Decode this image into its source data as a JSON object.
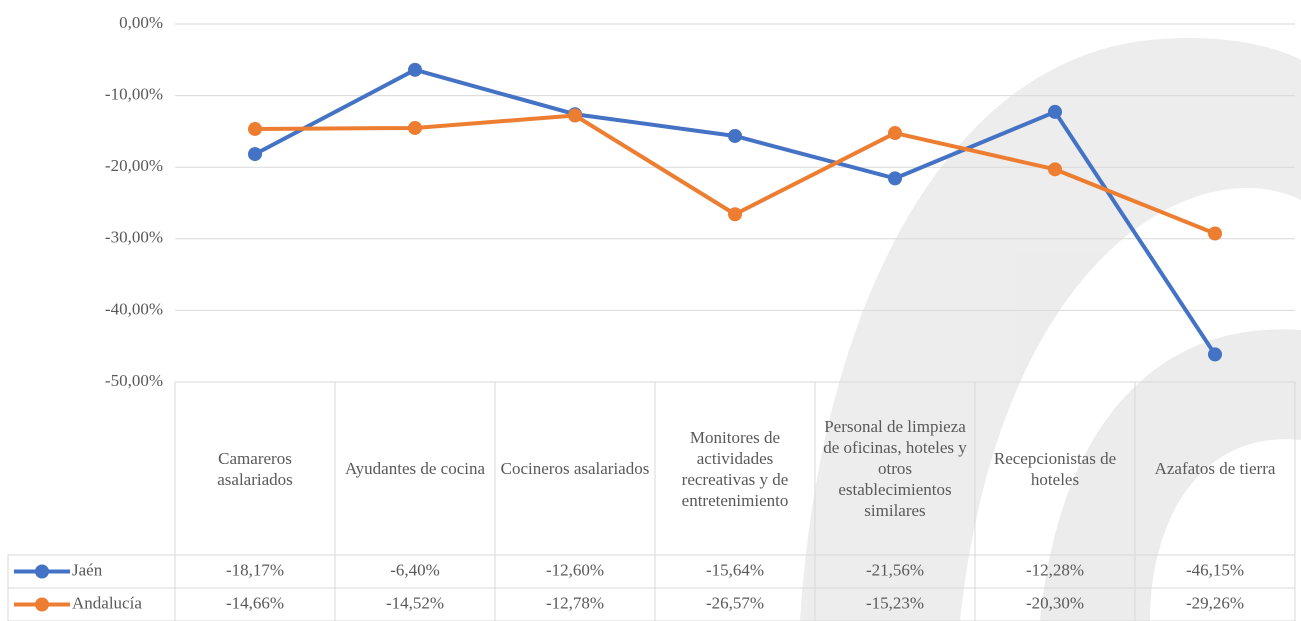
{
  "chart_data": {
    "type": "line",
    "categories": [
      "Camareros asalariados",
      "Ayudantes de cocina",
      "Cocineros asalariados",
      "Monitores de actividades recreativas y de entretenimiento",
      "Personal de limpieza de oficinas, hoteles y otros establecimientos similares",
      "Recepcionistas de hoteles",
      "Azafatos de tierra"
    ],
    "series": [
      {
        "name": "Jaén",
        "color": "#4472c4",
        "values": [
          -18.17,
          -6.4,
          -12.6,
          -15.64,
          -21.56,
          -12.28,
          -46.15
        ],
        "value_labels": [
          "-18,17%",
          "-6,40%",
          "-12,60%",
          "-15,64%",
          "-21,56%",
          "-12,28%",
          "-46,15%"
        ]
      },
      {
        "name": "Andalucía",
        "color": "#ed7d31",
        "values": [
          -14.66,
          -14.52,
          -12.78,
          -26.57,
          -15.23,
          -20.3,
          -29.26
        ],
        "value_labels": [
          "-14,66%",
          "-14,52%",
          "-12,78%",
          "-26,57%",
          "-15,23%",
          "-20,30%",
          "-29,26%"
        ]
      }
    ],
    "ylim": [
      -50,
      0
    ],
    "yticks": [
      {
        "value": 0,
        "label": "0,00%"
      },
      {
        "value": -10,
        "label": "-10,00%"
      },
      {
        "value": -20,
        "label": "-20,00%"
      },
      {
        "value": -30,
        "label": "-30,00%"
      },
      {
        "value": -40,
        "label": "-40,00%"
      },
      {
        "value": -50,
        "label": "-50,00%"
      }
    ],
    "grid": true
  }
}
